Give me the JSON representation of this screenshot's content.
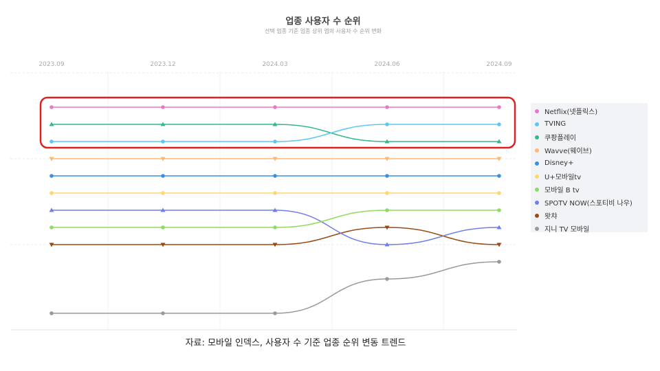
{
  "chart_data": {
    "type": "line",
    "title": "업종 사용자 수 순위",
    "subtitle": "선택 업종 기준 업종 상위 앱의 사용자 수 순위 변화",
    "x": [
      "2023.09",
      "2023.12",
      "2024.03",
      "2024.06",
      "2024.09"
    ],
    "ylabel": "",
    "y_reversed": true,
    "ylim": [
      1,
      13
    ],
    "grid": true,
    "legend_position": "right",
    "series": [
      {
        "name": "Netflix(넷플릭스)",
        "color": "#e879c9",
        "marker": "circle",
        "values": [
          1,
          1,
          1,
          1,
          1
        ]
      },
      {
        "name": "TVING",
        "color": "#5cc8f2",
        "marker": "circle",
        "values": [
          3,
          3,
          3,
          2,
          2
        ]
      },
      {
        "name": "쿠팡플레이",
        "color": "#33b886",
        "marker": "triangle",
        "values": [
          2,
          2,
          2,
          3,
          3
        ]
      },
      {
        "name": "Wavve(웨이브)",
        "color": "#ffb870",
        "marker": "triangle-down",
        "values": [
          4,
          4,
          4,
          4,
          4
        ]
      },
      {
        "name": "Disney+",
        "color": "#3d8ee0",
        "marker": "circle",
        "values": [
          5,
          5,
          5,
          5,
          5
        ]
      },
      {
        "name": "U+모바일tv",
        "color": "#ffd66e",
        "marker": "circle",
        "values": [
          6,
          6,
          6,
          6,
          6
        ]
      },
      {
        "name": "모바일 B tv",
        "color": "#8edc5e",
        "marker": "circle",
        "values": [
          8,
          8,
          8,
          7,
          7
        ]
      },
      {
        "name": "SPOTV NOW(스포티비 나우)",
        "color": "#6f7fe8",
        "marker": "triangle",
        "values": [
          7,
          7,
          7,
          9,
          8
        ]
      },
      {
        "name": "왓챠",
        "color": "#9a4a14",
        "marker": "triangle-down",
        "values": [
          9,
          9,
          9,
          8,
          9
        ]
      },
      {
        "name": "지니 TV 모바일",
        "color": "#999999",
        "marker": "circle",
        "values": [
          13,
          13,
          13,
          11,
          10
        ]
      }
    ],
    "highlight_box": {
      "color": "#e02020",
      "covers_ranks": [
        1,
        3
      ]
    }
  },
  "caption": "자료: 모바일 인덱스, 사용자 수 기준 업종 순위 변동 트렌드"
}
